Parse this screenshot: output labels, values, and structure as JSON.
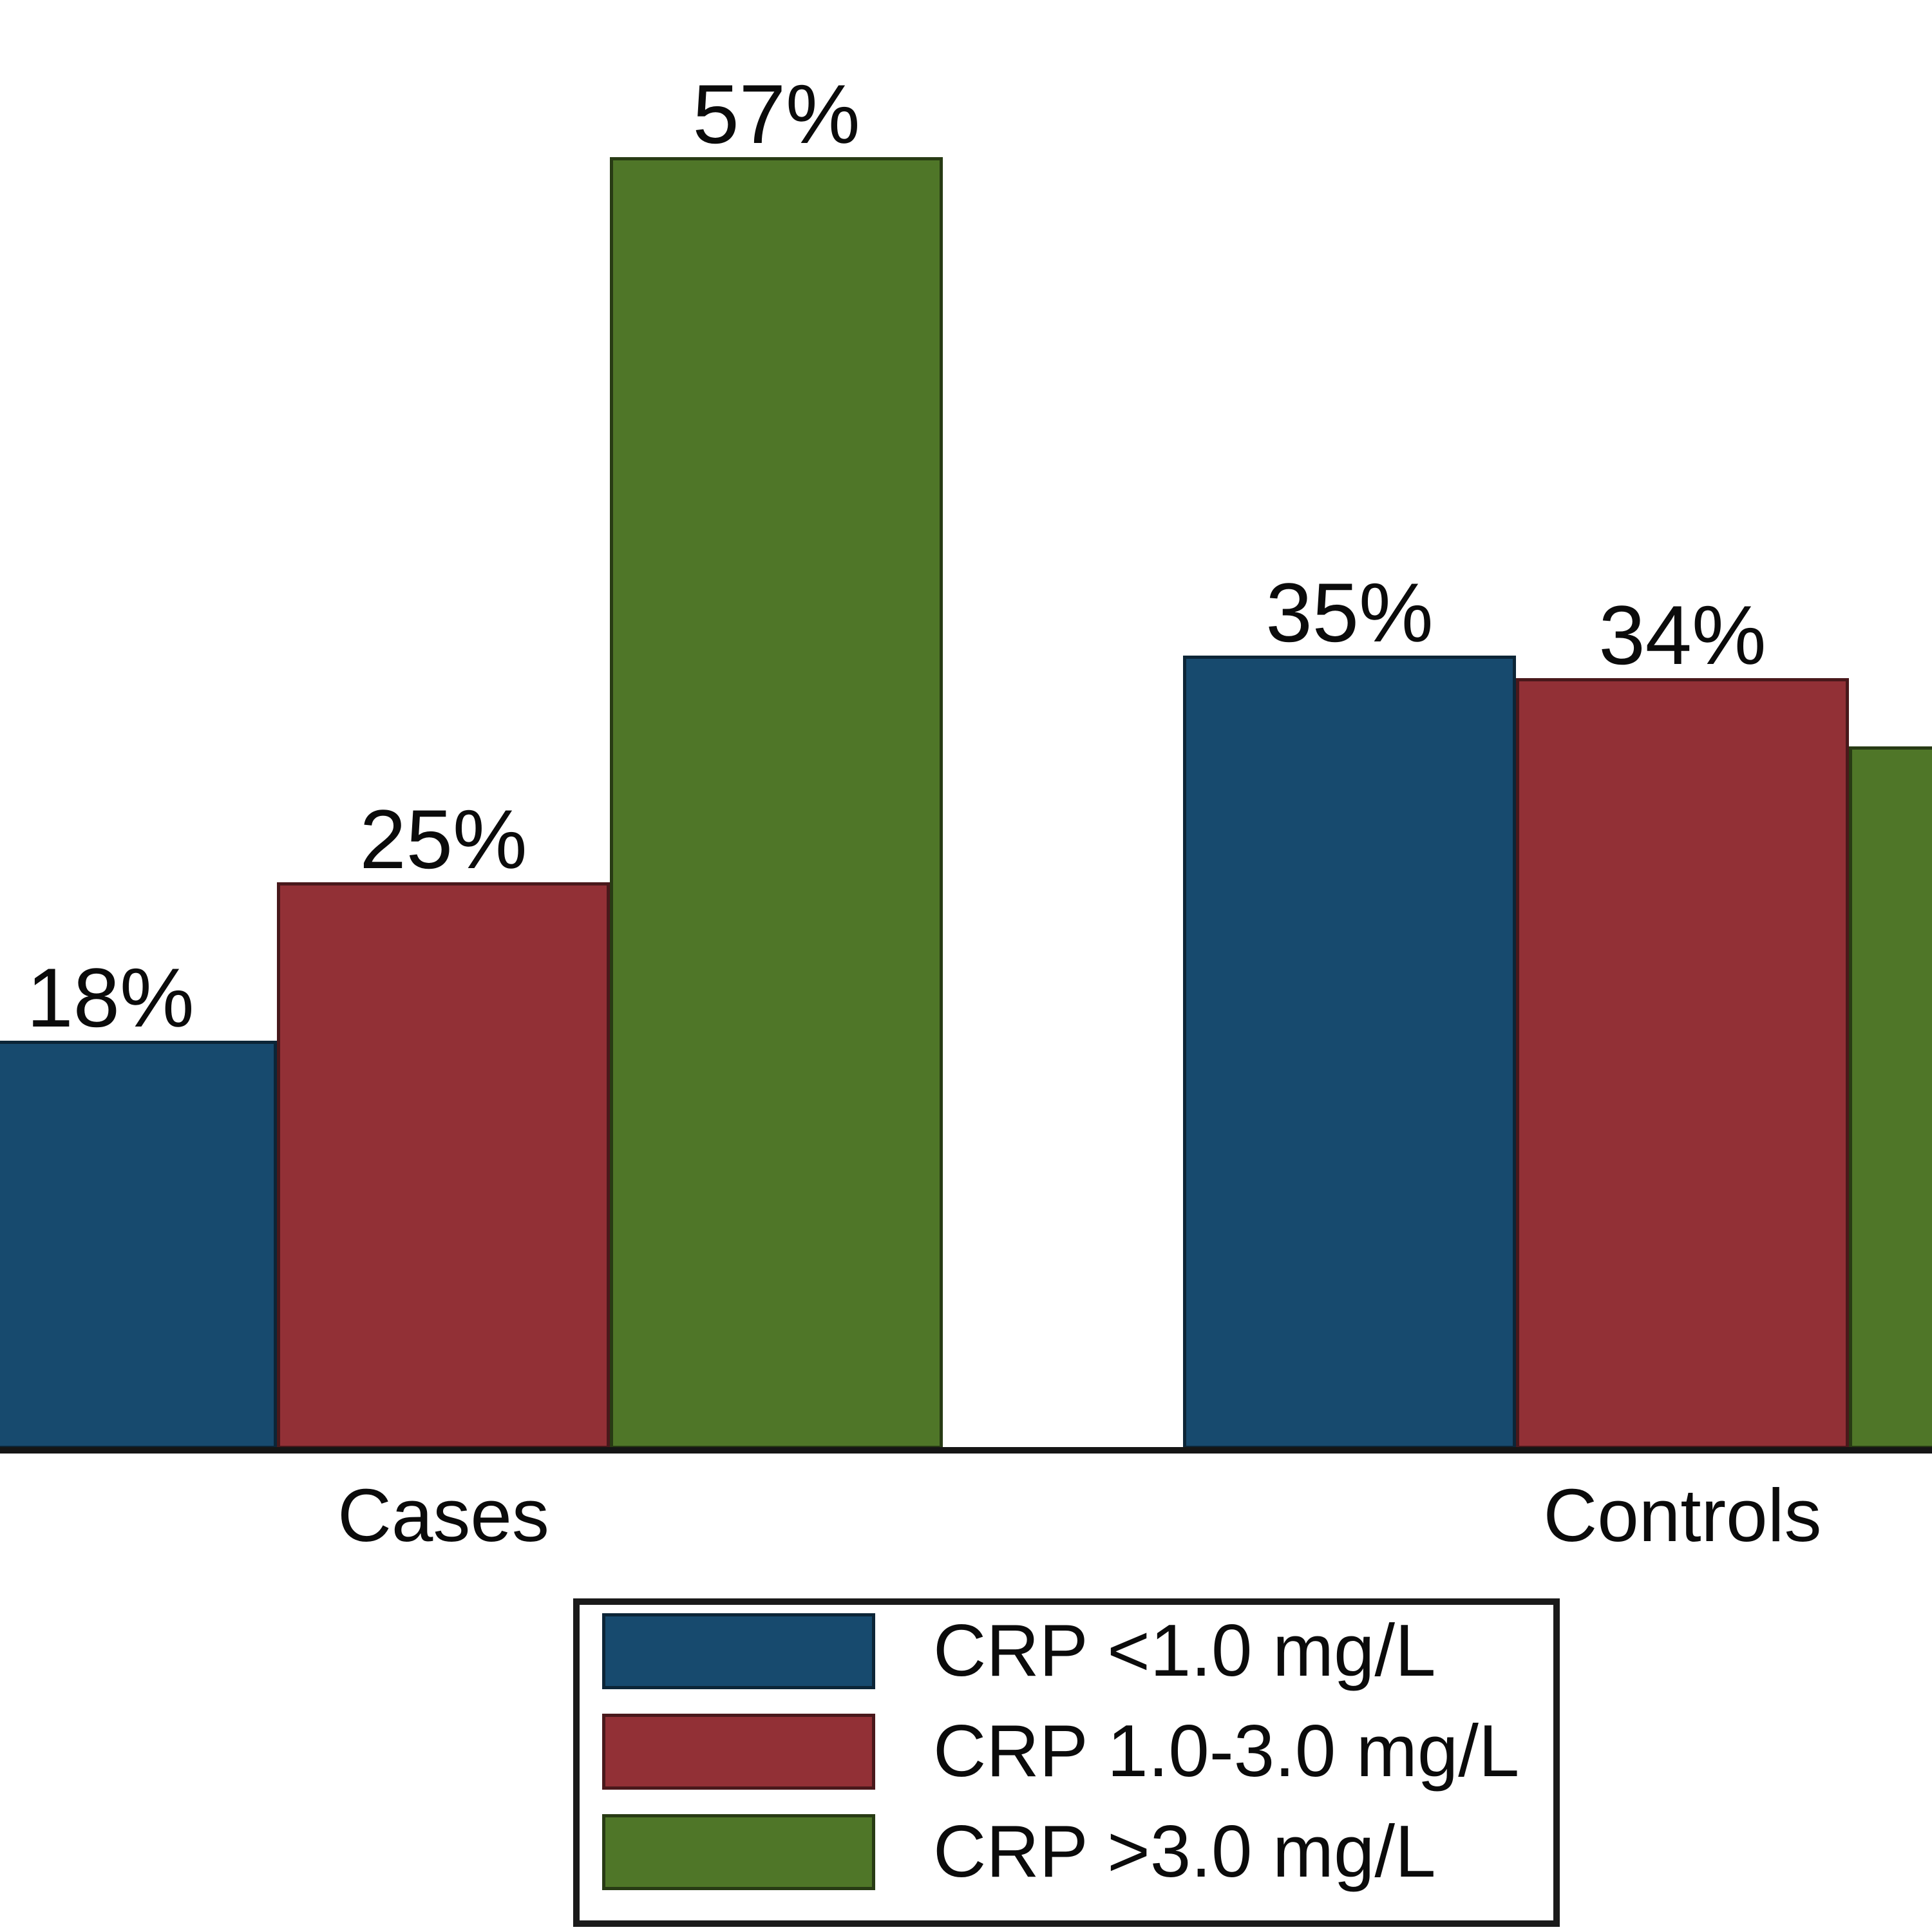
{
  "chart_data": {
    "type": "bar",
    "title": "",
    "categories": [
      "Cases",
      "Controls"
    ],
    "series": [
      {
        "name": "CRP <1.0 mg/L",
        "slug": "crp-lt-1-0",
        "color": "#174A6E",
        "values": [
          18,
          35
        ]
      },
      {
        "name": "CRP 1.0-3.0 mg/L",
        "slug": "crp-1-0-3-0",
        "color": "#923036",
        "values": [
          25,
          34
        ]
      },
      {
        "name": "CRP >3.0 mg/L",
        "slug": "crp-gt-3-0",
        "color": "#4F7628",
        "values": [
          57,
          31
        ]
      }
    ],
    "value_labels": [
      [
        "18%",
        "25%",
        "57%"
      ],
      [
        "35%",
        "34%",
        ""
      ]
    ],
    "unit": "percent",
    "ylim": [
      0,
      60
    ],
    "grid": false,
    "axes": {
      "y_axis_visible": false,
      "x_axis_line": true
    },
    "legend": {
      "position": "bottom-center",
      "entries": [
        "CRP <1.0 mg/L",
        "CRP 1.0-3.0 mg/L",
        "CRP >3.0 mg/L"
      ]
    },
    "notes": "Figure is cropped at both sides: the Cases 'CRP <1.0' bar is partially clipped at the left edge and the Controls 'CRP >3.0' bar is clipped at the right edge with its value label not visible (bar height ~31%)."
  },
  "colors": {
    "background": "#FFFFFF",
    "axis": "#151515",
    "text": "#0B0B0B",
    "legend_border": "#1A1A1A"
  }
}
